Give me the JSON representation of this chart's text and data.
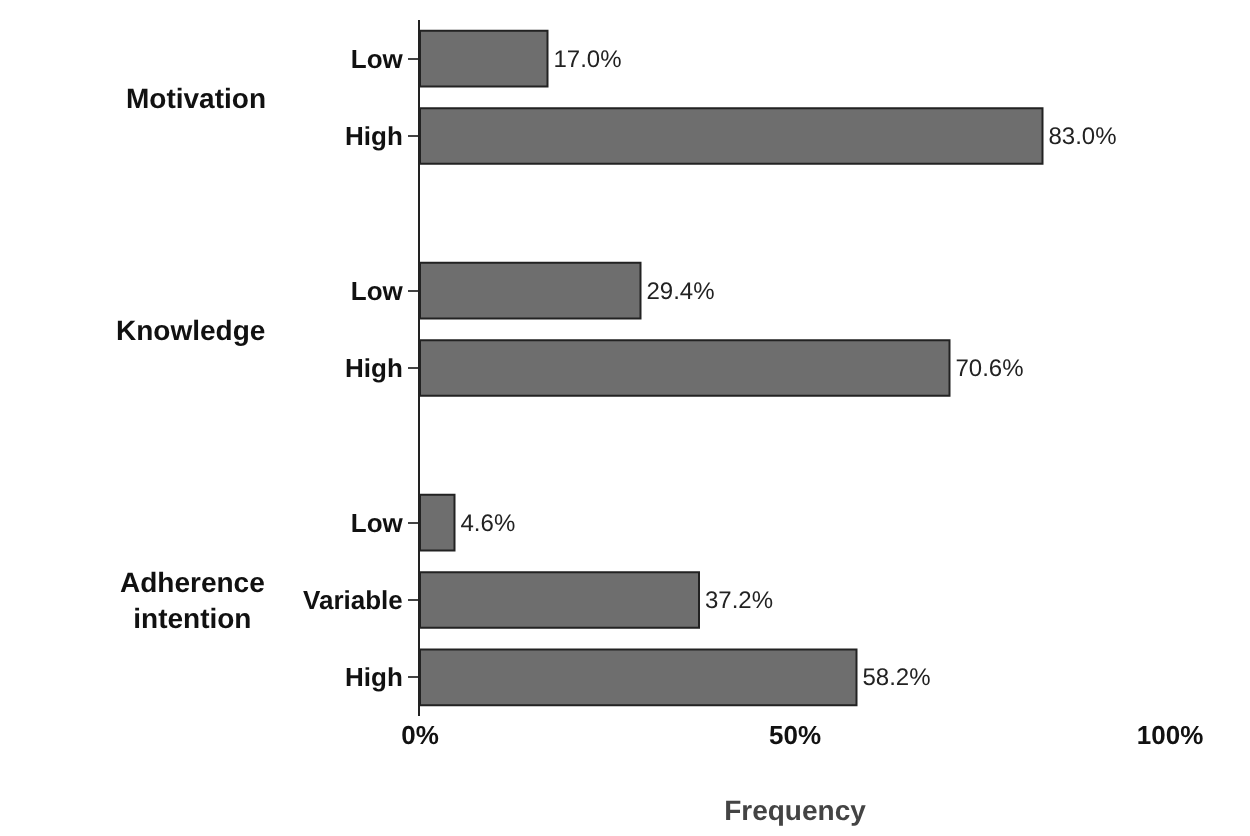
{
  "chart_data": {
    "type": "bar",
    "orientation": "horizontal",
    "xlabel": "Frequency",
    "categories": [
      "Low",
      "High",
      null,
      "Low",
      "High",
      null,
      "Low",
      "Variable",
      "High"
    ],
    "values": [
      17.0,
      83.0,
      null,
      29.4,
      70.6,
      null,
      4.6,
      37.2,
      58.2
    ],
    "value_labels": [
      "17.0%",
      "83.0%",
      null,
      "29.4%",
      "70.6%",
      null,
      "4.6%",
      "37.2%",
      "58.2%"
    ],
    "color": "#6e6e6e",
    "xlim": [
      0,
      100
    ],
    "xticks": [
      {
        "value": 0,
        "label": "0%"
      },
      {
        "value": 50,
        "label": "50%"
      },
      {
        "value": 100,
        "label": "100%"
      }
    ],
    "annotations": [
      "Motivation",
      "Knowledge",
      "Adherence\nintention"
    ],
    "grid": false,
    "legend": false
  }
}
